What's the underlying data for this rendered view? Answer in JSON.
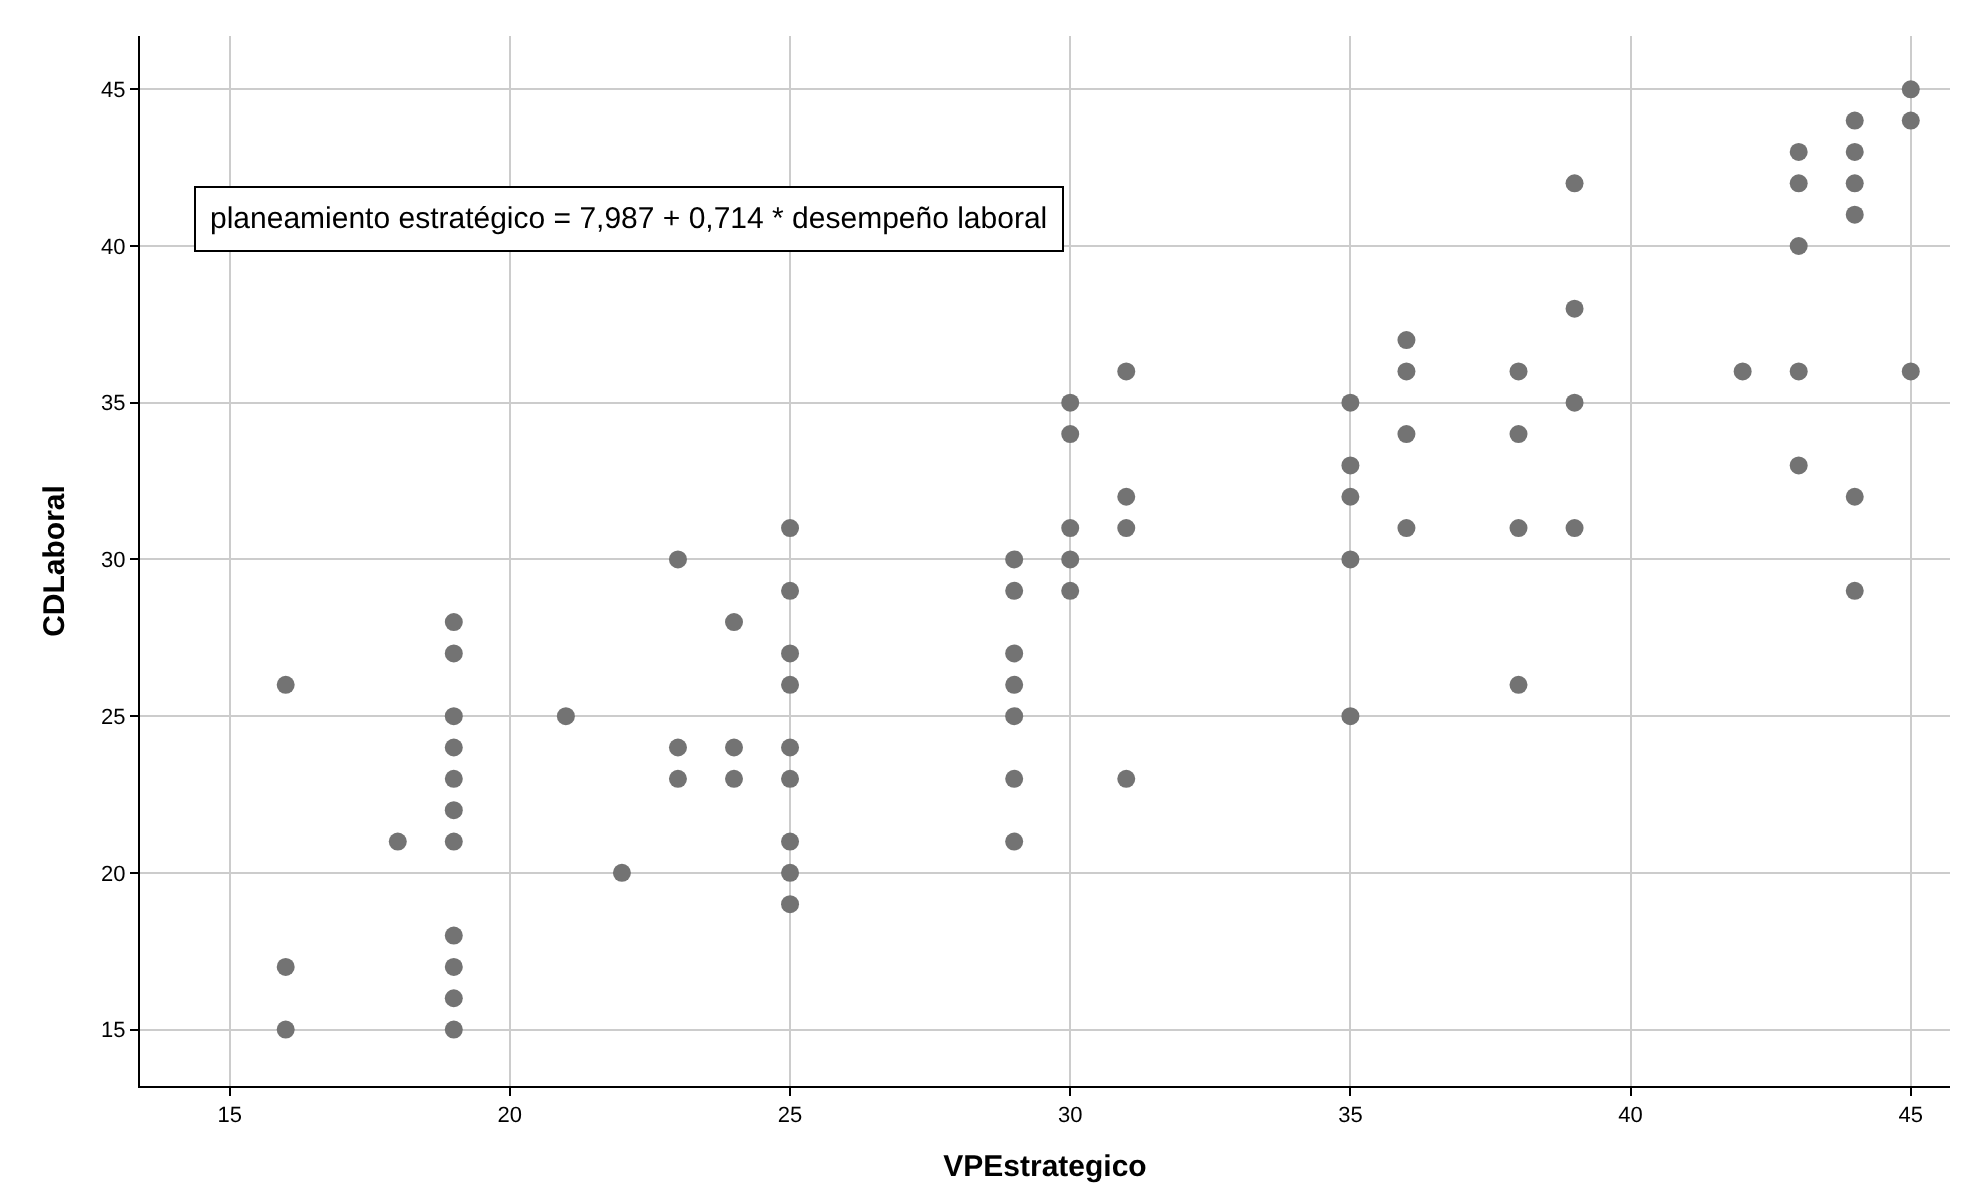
{
  "chart_data": {
    "type": "scatter",
    "xlabel": "VPEstrategico",
    "ylabel": "CDLaboral",
    "annotations": [
      "planeamiento estratégico = 7,987 + 0,714 * desempeño laboral"
    ],
    "x": [
      16,
      16,
      16,
      18,
      19,
      19,
      19,
      19,
      19,
      19,
      19,
      19,
      19,
      19,
      19,
      21,
      22,
      23,
      23,
      23,
      24,
      24,
      24,
      25,
      25,
      25,
      25,
      25,
      25,
      25,
      25,
      25,
      29,
      29,
      29,
      29,
      29,
      29,
      29,
      30,
      30,
      30,
      30,
      30,
      31,
      31,
      31,
      31,
      35,
      35,
      35,
      35,
      35,
      36,
      36,
      36,
      36,
      38,
      38,
      38,
      38,
      39,
      39,
      39,
      39,
      42,
      43,
      43,
      43,
      43,
      43,
      44,
      44,
      44,
      44,
      44,
      44,
      45,
      45,
      45
    ],
    "values": [
      26,
      17,
      15,
      21,
      28,
      27,
      25,
      24,
      23,
      22,
      21,
      18,
      17,
      16,
      15,
      25,
      20,
      30,
      24,
      23,
      28,
      24,
      23,
      31,
      29,
      27,
      26,
      24,
      23,
      21,
      20,
      19,
      30,
      29,
      27,
      26,
      25,
      23,
      21,
      35,
      34,
      31,
      30,
      29,
      36,
      32,
      31,
      23,
      35,
      33,
      32,
      30,
      25,
      37,
      36,
      34,
      31,
      36,
      34,
      31,
      26,
      42,
      38,
      35,
      31,
      36,
      43,
      42,
      40,
      36,
      33,
      44,
      43,
      42,
      41,
      32,
      29,
      45,
      44,
      36
    ],
    "color": "#737373",
    "marker": "circle",
    "grid": true,
    "xlim": [
      13.4,
      45.7
    ],
    "xticks": [
      15,
      20,
      25,
      30,
      35,
      40,
      45
    ],
    "ylim": [
      13.2,
      46.7
    ],
    "yticks": [
      15,
      20,
      25,
      30,
      35,
      40,
      45
    ]
  }
}
